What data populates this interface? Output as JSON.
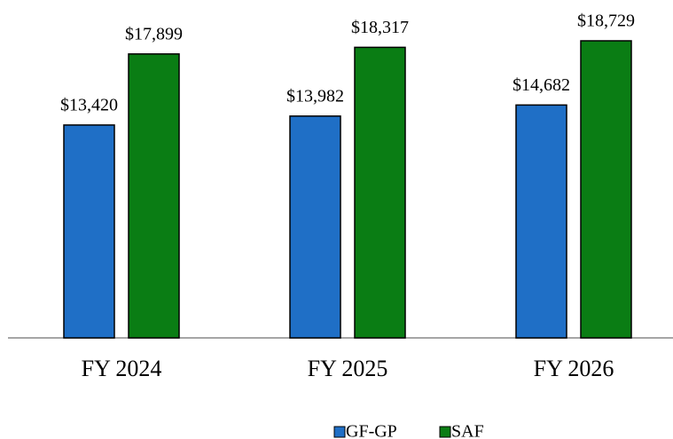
{
  "chart_data": {
    "type": "bar",
    "categories": [
      "FY 2024",
      "FY 2025",
      "FY 2026"
    ],
    "series": [
      {
        "name": "GF-GP",
        "color": "#1f6fc6",
        "values": [
          13420,
          13982,
          14682
        ],
        "value_labels": [
          "$13,420",
          "$13,982",
          "$14,682"
        ]
      },
      {
        "name": "SAF",
        "color": "#0a7d14",
        "values": [
          17899,
          18317,
          18729
        ],
        "value_labels": [
          "$17,899",
          "$18,317",
          "$18,729"
        ]
      }
    ]
  }
}
